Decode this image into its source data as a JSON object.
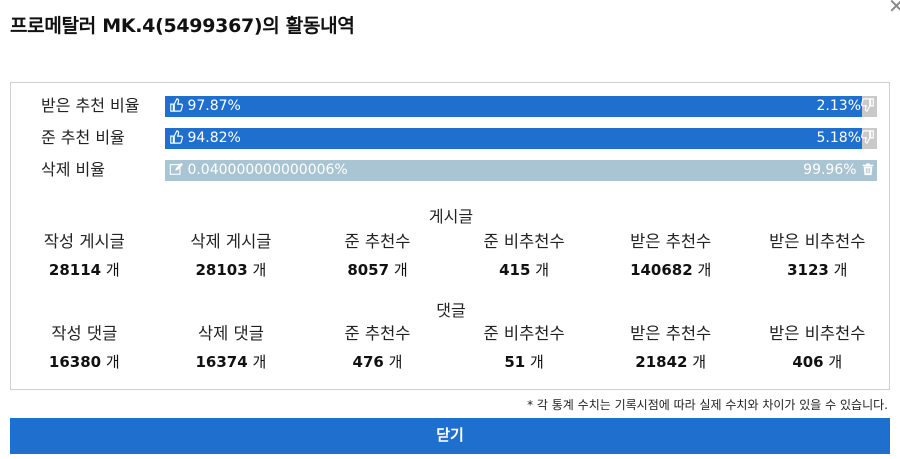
{
  "title": "프로메탈러 MK.4(5499367)의 활동내역",
  "ratios": [
    {
      "label": "받은 추천 비율",
      "left_text": "97.87%",
      "right_text": "2.13%",
      "left_fraction": 0.9787,
      "left_icon": "thumbs-up-icon",
      "right_icon": "thumbs-down-icon",
      "style": "blue"
    },
    {
      "label": "준 추천 비율",
      "left_text": "94.82%",
      "right_text": "5.18%",
      "left_fraction": 0.9482,
      "left_icon": "thumbs-up-icon",
      "right_icon": "thumbs-down-icon",
      "style": "blue"
    },
    {
      "label": "삭제 비율",
      "left_text": "0.040000000000006%",
      "right_text": "99.96%",
      "left_fraction": 0.0004,
      "left_icon": "edit-icon",
      "right_icon": "trash-icon",
      "style": "gray"
    }
  ],
  "posts": {
    "section_title": "게시글",
    "unit": "개",
    "stats": [
      {
        "label": "작성 게시글",
        "value": "28114"
      },
      {
        "label": "삭제 게시글",
        "value": "28103"
      },
      {
        "label": "준 추천수",
        "value": "8057"
      },
      {
        "label": "준 비추천수",
        "value": "415"
      },
      {
        "label": "받은 추천수",
        "value": "140682"
      },
      {
        "label": "받은 비추천수",
        "value": "3123"
      }
    ]
  },
  "comments": {
    "section_title": "댓글",
    "unit": "개",
    "stats": [
      {
        "label": "작성 댓글",
        "value": "16380"
      },
      {
        "label": "삭제 댓글",
        "value": "16374"
      },
      {
        "label": "준 추천수",
        "value": "476"
      },
      {
        "label": "준 비추천수",
        "value": "51"
      },
      {
        "label": "받은 추천수",
        "value": "21842"
      },
      {
        "label": "받은 비추천수",
        "value": "406"
      }
    ]
  },
  "footnote": "* 각 통계 수치는 기록시점에 따라 실제 수치와 차이가 있을 수 있습니다.",
  "close_label": "닫기",
  "colors": {
    "accent": "#1f6fcf",
    "gray_bar": "#a9c4d2"
  }
}
